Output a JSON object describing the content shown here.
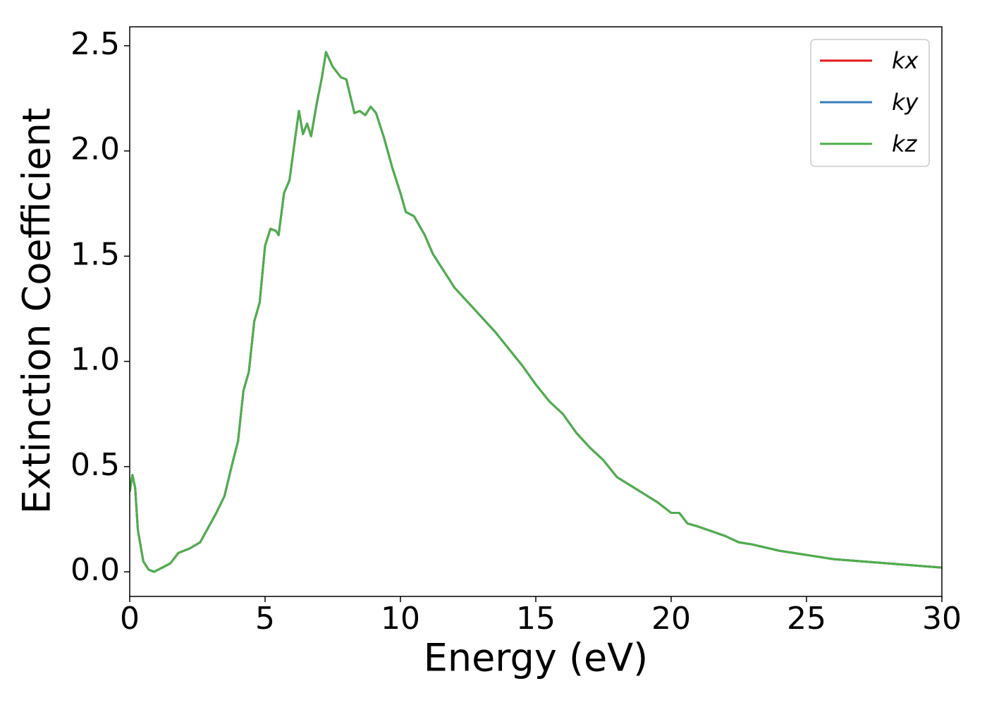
{
  "chart_data": {
    "type": "line",
    "xlabel": "Energy (eV)",
    "ylabel": "Extinction Coefficient",
    "x": [
      0.0,
      0.1,
      0.2,
      0.3,
      0.5,
      0.7,
      0.9,
      1.2,
      1.5,
      1.8,
      2.2,
      2.6,
      2.9,
      3.2,
      3.5,
      3.8,
      4.0,
      4.2,
      4.4,
      4.6,
      4.8,
      5.0,
      5.2,
      5.4,
      5.5,
      5.7,
      5.9,
      6.1,
      6.25,
      6.4,
      6.55,
      6.7,
      6.9,
      7.1,
      7.25,
      7.5,
      7.8,
      8.0,
      8.3,
      8.5,
      8.7,
      8.9,
      9.1,
      9.4,
      9.7,
      10.0,
      10.2,
      10.5,
      10.9,
      11.2,
      11.6,
      12.0,
      12.5,
      13.0,
      13.5,
      14.0,
      14.5,
      15.0,
      15.5,
      16.0,
      16.5,
      17.0,
      17.5,
      18.0,
      18.5,
      19.0,
      19.5,
      20.0,
      20.3,
      20.6,
      21.0,
      22.0,
      22.5,
      23.0,
      24.0,
      25.0,
      26.0,
      27.0,
      28.0,
      29.0,
      30.0
    ],
    "series": [
      {
        "name": "kx",
        "color": "#e41a1c",
        "values": [
          0.38,
          0.46,
          0.4,
          0.2,
          0.05,
          0.01,
          0.0,
          0.02,
          0.04,
          0.09,
          0.11,
          0.14,
          0.21,
          0.28,
          0.36,
          0.52,
          0.62,
          0.86,
          0.95,
          1.19,
          1.28,
          1.55,
          1.63,
          1.62,
          1.6,
          1.8,
          1.86,
          2.05,
          2.19,
          2.08,
          2.13,
          2.07,
          2.22,
          2.35,
          2.47,
          2.4,
          2.35,
          2.34,
          2.18,
          2.19,
          2.17,
          2.21,
          2.18,
          2.06,
          1.92,
          1.8,
          1.71,
          1.69,
          1.6,
          1.51,
          1.43,
          1.35,
          1.28,
          1.21,
          1.14,
          1.06,
          0.98,
          0.89,
          0.81,
          0.75,
          0.66,
          0.59,
          0.53,
          0.45,
          0.41,
          0.37,
          0.33,
          0.28,
          0.28,
          0.23,
          0.215,
          0.17,
          0.14,
          0.13,
          0.1,
          0.08,
          0.06,
          0.05,
          0.04,
          0.03,
          0.02
        ]
      },
      {
        "name": "ky",
        "color": "#377eb8",
        "values": [
          0.38,
          0.46,
          0.4,
          0.2,
          0.05,
          0.01,
          0.0,
          0.02,
          0.04,
          0.09,
          0.11,
          0.14,
          0.21,
          0.28,
          0.36,
          0.52,
          0.62,
          0.86,
          0.95,
          1.19,
          1.28,
          1.55,
          1.63,
          1.62,
          1.6,
          1.8,
          1.86,
          2.05,
          2.19,
          2.08,
          2.13,
          2.07,
          2.22,
          2.35,
          2.47,
          2.4,
          2.35,
          2.34,
          2.18,
          2.19,
          2.17,
          2.21,
          2.18,
          2.06,
          1.92,
          1.8,
          1.71,
          1.69,
          1.6,
          1.51,
          1.43,
          1.35,
          1.28,
          1.21,
          1.14,
          1.06,
          0.98,
          0.89,
          0.81,
          0.75,
          0.66,
          0.59,
          0.53,
          0.45,
          0.41,
          0.37,
          0.33,
          0.28,
          0.28,
          0.23,
          0.215,
          0.17,
          0.14,
          0.13,
          0.1,
          0.08,
          0.06,
          0.05,
          0.04,
          0.03,
          0.02
        ]
      },
      {
        "name": "kz",
        "color": "#4daf4a",
        "values": [
          0.38,
          0.46,
          0.4,
          0.2,
          0.05,
          0.01,
          0.0,
          0.02,
          0.04,
          0.09,
          0.11,
          0.14,
          0.21,
          0.28,
          0.36,
          0.52,
          0.62,
          0.86,
          0.95,
          1.19,
          1.28,
          1.55,
          1.63,
          1.62,
          1.6,
          1.8,
          1.86,
          2.05,
          2.19,
          2.08,
          2.13,
          2.07,
          2.22,
          2.35,
          2.47,
          2.4,
          2.35,
          2.34,
          2.18,
          2.19,
          2.17,
          2.21,
          2.18,
          2.06,
          1.92,
          1.8,
          1.71,
          1.69,
          1.6,
          1.51,
          1.43,
          1.35,
          1.28,
          1.21,
          1.14,
          1.06,
          0.98,
          0.89,
          0.81,
          0.75,
          0.66,
          0.59,
          0.53,
          0.45,
          0.41,
          0.37,
          0.33,
          0.28,
          0.28,
          0.23,
          0.215,
          0.17,
          0.14,
          0.13,
          0.1,
          0.08,
          0.06,
          0.05,
          0.04,
          0.03,
          0.02
        ]
      }
    ],
    "xlim": [
      0,
      30
    ],
    "xticks": [
      0,
      5,
      10,
      15,
      20,
      25,
      30
    ],
    "ylim": [
      -0.117,
      2.59
    ],
    "yticks": [
      {
        "value": 0,
        "label": "0.0"
      },
      0.5,
      {
        "value": 1,
        "label": "1.0"
      },
      1.5,
      {
        "value": 2,
        "label": "2.0"
      },
      2.5
    ],
    "legend": "upper right",
    "grid": false
  }
}
